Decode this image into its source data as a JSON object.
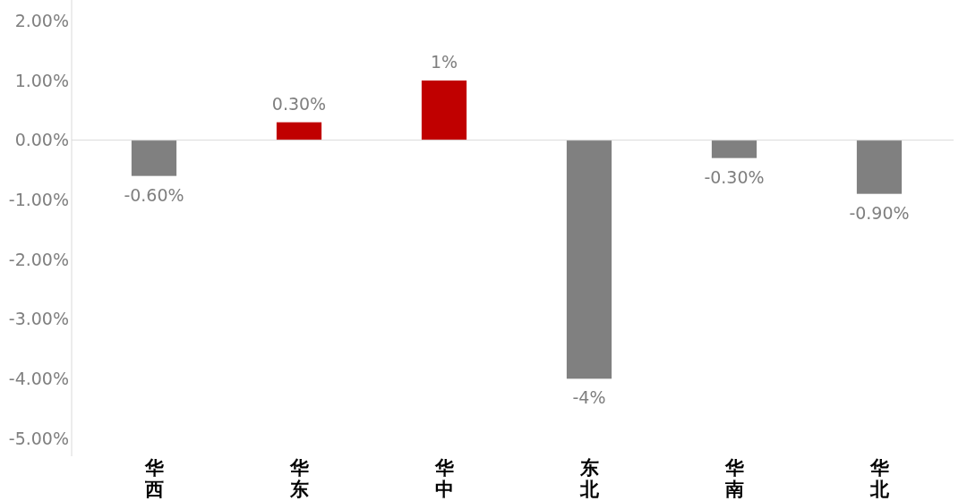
{
  "chart_data": {
    "type": "bar",
    "categories": [
      "华西",
      "华东",
      "华中",
      "东北",
      "华南",
      "华北"
    ],
    "values": [
      -0.6,
      0.3,
      1,
      -4,
      -0.3,
      -0.9
    ],
    "colors": [
      "#808080",
      "#c00000",
      "#c00000",
      "#808080",
      "#808080",
      "#808080"
    ],
    "value_labels": [
      "-0.60%",
      "0.30%",
      "1%",
      "-4%",
      "-0.30%",
      "-0.90%"
    ],
    "ylim": [
      -5.3,
      2.35
    ],
    "yticks": [
      {
        "value": 2,
        "label": "2.00%"
      },
      {
        "value": 1,
        "label": "1.00%"
      },
      {
        "value": 0,
        "label": "0.00%"
      },
      {
        "value": -1,
        "label": "-1.00%"
      },
      {
        "value": -2,
        "label": "-2.00%"
      },
      {
        "value": -3,
        "label": "-3.00%"
      },
      {
        "value": -4,
        "label": "-4.00%"
      },
      {
        "value": -5,
        "label": "-5.00%"
      }
    ],
    "ref_lines": [
      {
        "axis": "y",
        "value": 0,
        "color": "#d9d9d9"
      }
    ],
    "grid": false
  }
}
